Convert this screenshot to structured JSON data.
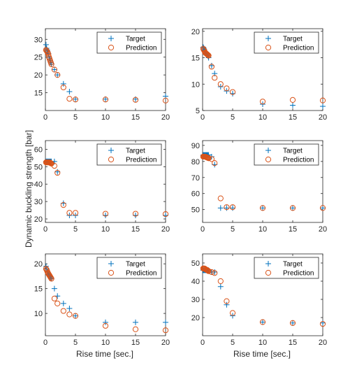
{
  "figure": {
    "ylabel": "Dynamic buckling strength [bar]",
    "xlabel": "Rise time [sec.]"
  },
  "colors": {
    "target": "#0072BD",
    "prediction": "#D95319",
    "axis": "#262626"
  },
  "chart_data": [
    {
      "type": "scatter",
      "panel": "top-left",
      "xlim": [
        0,
        20
      ],
      "ylim": [
        10,
        33
      ],
      "xticks": [
        0,
        5,
        10,
        15,
        20
      ],
      "yticks": [
        15,
        20,
        25,
        30
      ],
      "legend": "top-right",
      "series": [
        {
          "name": "Target",
          "marker": "+",
          "x": [
            0.1,
            0.2,
            0.3,
            0.4,
            0.5,
            0.6,
            0.7,
            0.8,
            0.9,
            1,
            1.5,
            2,
            3,
            4,
            5,
            10,
            15,
            20
          ],
          "y": [
            28.5,
            27.5,
            27,
            26.5,
            26,
            25,
            24.5,
            24,
            23.5,
            23,
            21.5,
            20,
            17.5,
            15.3,
            13.2,
            13.2,
            13.2,
            14
          ]
        },
        {
          "name": "Prediction",
          "marker": "o",
          "x": [
            0.1,
            0.2,
            0.3,
            0.4,
            0.5,
            0.6,
            0.7,
            0.8,
            0.9,
            1,
            1.5,
            2,
            3,
            4,
            5,
            10,
            15,
            20
          ],
          "y": [
            27,
            26.8,
            26.5,
            26.2,
            25.8,
            25,
            24.5,
            24,
            23.5,
            23,
            21.5,
            20,
            16.5,
            13.3,
            13.1,
            13.1,
            13,
            12.8
          ]
        }
      ]
    },
    {
      "type": "scatter",
      "panel": "top-right",
      "xlim": [
        0,
        20
      ],
      "ylim": [
        5,
        20.5
      ],
      "xticks": [
        0,
        5,
        10,
        15,
        20
      ],
      "yticks": [
        5,
        10,
        15,
        20
      ],
      "legend": "top-right",
      "series": [
        {
          "name": "Target",
          "marker": "+",
          "x": [
            0.1,
            0.2,
            0.3,
            0.4,
            0.5,
            0.6,
            0.7,
            0.8,
            0.9,
            1,
            1.5,
            2,
            3,
            4,
            5,
            10,
            15,
            20
          ],
          "y": [
            17,
            16.8,
            16.5,
            16.2,
            16,
            15.8,
            15.6,
            15.5,
            15.3,
            15,
            13.5,
            12,
            9.5,
            8.7,
            8.2,
            6.2,
            6,
            5.8
          ]
        },
        {
          "name": "Prediction",
          "marker": "o",
          "x": [
            0.1,
            0.2,
            0.3,
            0.4,
            0.5,
            0.6,
            0.7,
            0.8,
            0.9,
            1,
            1.5,
            2,
            3,
            4,
            5,
            10,
            15,
            20
          ],
          "y": [
            16.7,
            16.5,
            16.3,
            16,
            15.9,
            15.8,
            15.7,
            15.6,
            15.5,
            15.4,
            13.3,
            11.2,
            10,
            9.2,
            8.5,
            6.7,
            7,
            6.9
          ]
        }
      ]
    },
    {
      "type": "scatter",
      "panel": "middle-left",
      "xlim": [
        0,
        20
      ],
      "ylim": [
        18,
        65
      ],
      "xticks": [
        0,
        5,
        10,
        15,
        20
      ],
      "yticks": [
        20,
        30,
        40,
        50,
        60
      ],
      "legend": "top-right",
      "series": [
        {
          "name": "Target",
          "marker": "+",
          "x": [
            0.1,
            0.2,
            0.3,
            0.4,
            0.5,
            0.6,
            0.7,
            0.8,
            0.9,
            1,
            1.5,
            2,
            3,
            4,
            5,
            10,
            15,
            20
          ],
          "y": [
            53,
            53,
            53,
            53,
            53,
            53,
            53,
            53,
            53,
            53,
            53,
            47,
            29,
            22,
            22,
            22,
            22,
            22
          ]
        },
        {
          "name": "Prediction",
          "marker": "o",
          "x": [
            0.1,
            0.2,
            0.3,
            0.4,
            0.5,
            0.6,
            0.7,
            0.8,
            0.9,
            1,
            1.5,
            2,
            3,
            4,
            5,
            10,
            15,
            20
          ],
          "y": [
            52.5,
            52.5,
            52.5,
            52.5,
            52.5,
            52.5,
            52.5,
            52.3,
            52,
            51.8,
            50.5,
            46.5,
            28,
            23.5,
            23.5,
            23,
            23,
            22.8
          ]
        }
      ]
    },
    {
      "type": "scatter",
      "panel": "middle-right",
      "xlim": [
        0,
        20
      ],
      "ylim": [
        42,
        93
      ],
      "xticks": [
        0,
        5,
        10,
        15,
        20
      ],
      "yticks": [
        50,
        60,
        70,
        80,
        90
      ],
      "legend": "top-right",
      "series": [
        {
          "name": "Target",
          "marker": "+",
          "x": [
            0.1,
            0.2,
            0.3,
            0.4,
            0.5,
            0.6,
            0.7,
            0.8,
            0.9,
            1,
            1.5,
            2,
            3,
            4,
            5,
            10,
            15,
            20
          ],
          "y": [
            84,
            84,
            84,
            84,
            84,
            84,
            84,
            84,
            84,
            84,
            83,
            78,
            51,
            51,
            51,
            51,
            51,
            51
          ]
        },
        {
          "name": "Prediction",
          "marker": "o",
          "x": [
            0.1,
            0.2,
            0.3,
            0.4,
            0.5,
            0.6,
            0.7,
            0.8,
            0.9,
            1,
            1.5,
            2,
            3,
            4,
            5,
            10,
            15,
            20
          ],
          "y": [
            83,
            83,
            83,
            83,
            82.8,
            82.7,
            82.5,
            82.4,
            82.2,
            82,
            81.5,
            79,
            57,
            51.5,
            51.5,
            51,
            51,
            51
          ]
        }
      ]
    },
    {
      "type": "scatter",
      "panel": "bottom-left",
      "xlim": [
        0,
        20
      ],
      "ylim": [
        5.5,
        22
      ],
      "xticks": [
        0,
        5,
        10,
        15,
        20
      ],
      "yticks": [
        10,
        15,
        20
      ],
      "legend": "top-right",
      "series": [
        {
          "name": "Target",
          "marker": "+",
          "x": [
            0.1,
            0.2,
            0.3,
            0.4,
            0.5,
            0.6,
            0.7,
            0.8,
            0.9,
            1,
            1.5,
            2,
            3,
            4,
            5,
            10,
            15,
            20
          ],
          "y": [
            19.5,
            19,
            18.5,
            18.3,
            18,
            17.8,
            17.6,
            17.4,
            17.2,
            17,
            15,
            13.5,
            12,
            11,
            9.5,
            8.2,
            8.2,
            8.2
          ]
        },
        {
          "name": "Prediction",
          "marker": "o",
          "x": [
            0.1,
            0.2,
            0.3,
            0.4,
            0.5,
            0.6,
            0.7,
            0.8,
            0.9,
            1,
            1.5,
            2,
            3,
            4,
            5,
            10,
            15,
            20
          ],
          "y": [
            19,
            18.8,
            18.5,
            18.2,
            18,
            17.8,
            17.6,
            17.4,
            17.2,
            17,
            13,
            12,
            10.5,
            9.8,
            9.5,
            7.5,
            6.8,
            6.6
          ]
        }
      ]
    },
    {
      "type": "scatter",
      "panel": "bottom-right",
      "xlim": [
        0,
        20
      ],
      "ylim": [
        10,
        55
      ],
      "xticks": [
        0,
        5,
        10,
        15,
        20
      ],
      "yticks": [
        20,
        30,
        40,
        50
      ],
      "legend": "top-right",
      "series": [
        {
          "name": "Target",
          "marker": "+",
          "x": [
            0.1,
            0.2,
            0.3,
            0.4,
            0.5,
            0.6,
            0.7,
            0.8,
            0.9,
            1,
            1.5,
            2,
            3,
            4,
            5,
            10,
            15,
            20
          ],
          "y": [
            46,
            46,
            46,
            46,
            46,
            46,
            46,
            46,
            46,
            46,
            45,
            45,
            37,
            27,
            21,
            17.5,
            17,
            17
          ]
        },
        {
          "name": "Prediction",
          "marker": "o",
          "x": [
            0.1,
            0.2,
            0.3,
            0.4,
            0.5,
            0.6,
            0.7,
            0.8,
            0.9,
            1,
            1.5,
            2,
            3,
            4,
            5,
            10,
            15,
            20
          ],
          "y": [
            47,
            47,
            47,
            46.8,
            46.5,
            46.3,
            46.2,
            46,
            45.8,
            45.5,
            45,
            44.5,
            40,
            29,
            22.5,
            17.5,
            17,
            16.5
          ]
        }
      ]
    }
  ]
}
